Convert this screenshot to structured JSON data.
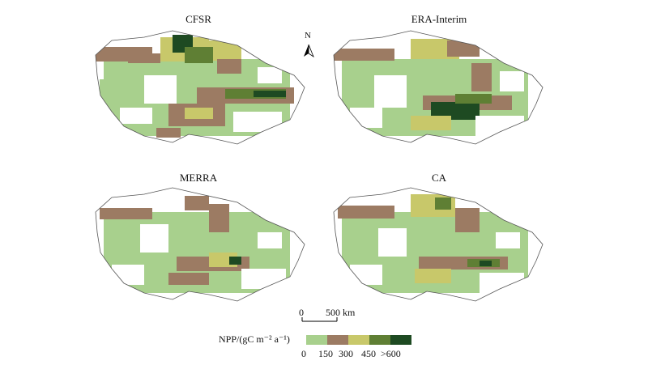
{
  "panels": [
    {
      "id": "cfsr",
      "title": "CFSR"
    },
    {
      "id": "era",
      "title": "ERA-Interim"
    },
    {
      "id": "merra",
      "title": "MERRA"
    },
    {
      "id": "ca",
      "title": "CA"
    }
  ],
  "north_arrow": {
    "label": "N"
  },
  "scale_bar": {
    "start": "0",
    "end": "500 km"
  },
  "legend": {
    "title": "NPP/(gC m⁻² a⁻¹)",
    "ticks": [
      "0",
      "150",
      "300",
      "450",
      ">600"
    ],
    "classes": [
      {
        "range": "0-150",
        "color": "#a8d08d"
      },
      {
        "range": "150-300",
        "color": "#9c7b63"
      },
      {
        "range": "300-450",
        "color": "#c8c86a"
      },
      {
        "range": "450-600",
        "color": "#5f7f34"
      },
      {
        "range": ">600",
        "color": "#1e4a22"
      }
    ]
  }
}
